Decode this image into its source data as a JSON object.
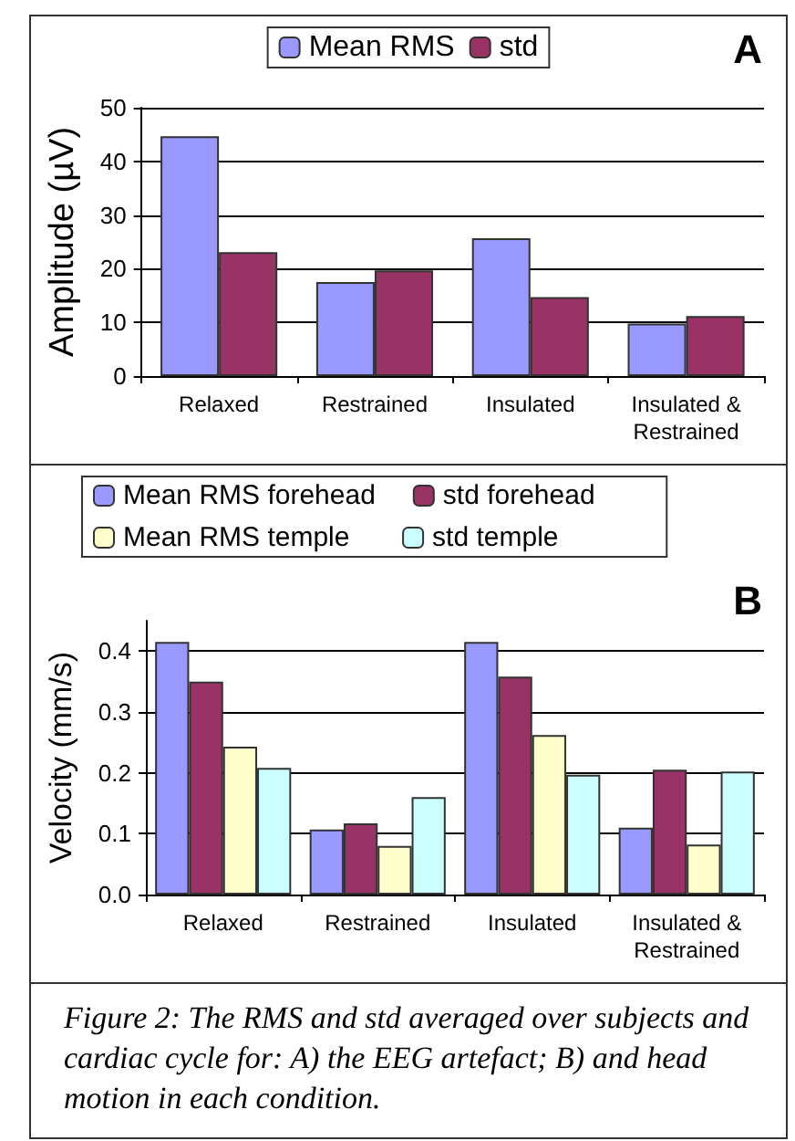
{
  "chart_data": [
    {
      "type": "bar",
      "title": "A",
      "ylabel": "Amplitude (µV)",
      "categories": [
        "Relaxed",
        "Restrained",
        "Insulated",
        "Insulated & Restrained"
      ],
      "series": [
        {
          "name": "Mean RMS",
          "color": "#9999ff",
          "values": [
            44.7,
            17.5,
            25.7,
            9.8
          ]
        },
        {
          "name": "std",
          "color": "#993366",
          "values": [
            23.1,
            19.7,
            14.7,
            11.2
          ]
        }
      ],
      "ylim": [
        0,
        50
      ],
      "yticks": [
        0,
        10,
        20,
        30,
        40,
        50
      ],
      "grid": "y",
      "legend": "top"
    },
    {
      "type": "bar",
      "title": "B",
      "ylabel": "Velocity (mm/s)",
      "categories": [
        "Relaxed",
        "Restrained",
        "Insulated",
        "Insulated & Restrained"
      ],
      "series": [
        {
          "name": "Mean RMS forehead",
          "color": "#9999ff",
          "values": [
            0.415,
            0.107,
            0.415,
            0.11
          ]
        },
        {
          "name": "std forehead",
          "color": "#993366",
          "values": [
            0.35,
            0.117,
            0.358,
            0.205
          ]
        },
        {
          "name": "Mean RMS temple",
          "color": "#ffffcc",
          "values": [
            0.243,
            0.08,
            0.262,
            0.082
          ]
        },
        {
          "name": "std temple",
          "color": "#ccffff",
          "values": [
            0.208,
            0.16,
            0.197,
            0.202
          ]
        }
      ],
      "ylim": [
        0,
        0.45
      ],
      "yticks": [
        {
          "value": 0,
          "label": "0.0"
        },
        0.1,
        0.2,
        0.3,
        0.4
      ],
      "grid": "y",
      "legend": "top",
      "annotations": [
        "Figure 2: The RMS and std averaged over subjects and cardiac cycle for: A) the EEG artefact; B) and head motion in each condition."
      ]
    }
  ]
}
